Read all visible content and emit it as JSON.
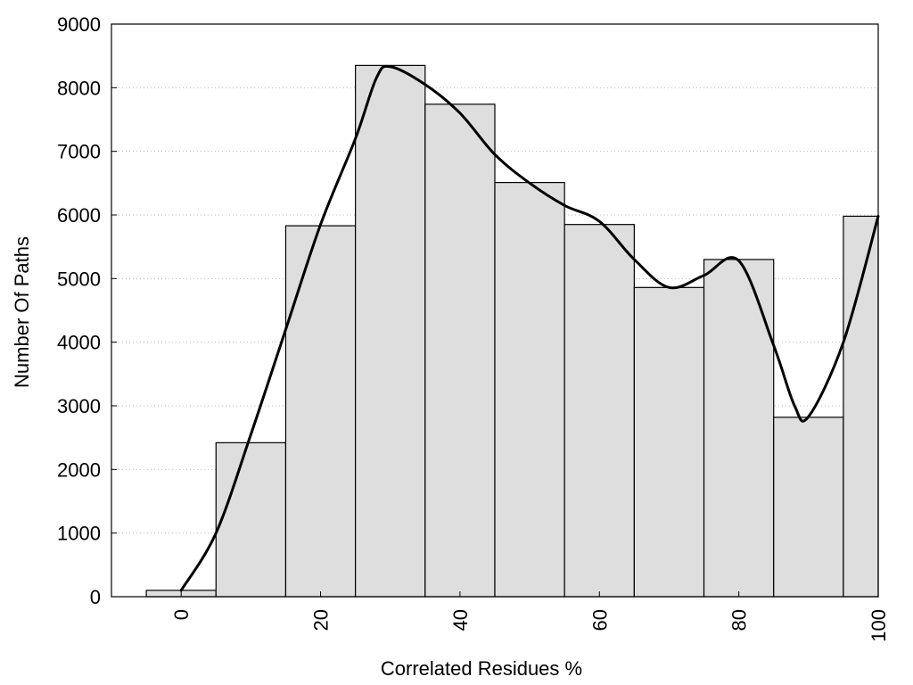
{
  "chart_data": {
    "type": "bar",
    "bar_width": 10,
    "x": [
      0,
      10,
      20,
      30,
      40,
      50,
      60,
      70,
      80,
      90,
      100
    ],
    "values": [
      100,
      2420,
      5830,
      8350,
      7740,
      6510,
      5850,
      4860,
      5300,
      2820,
      5980
    ],
    "curve": [
      [
        0,
        100
      ],
      [
        5,
        1000
      ],
      [
        10,
        2550
      ],
      [
        15,
        4200
      ],
      [
        20,
        5850
      ],
      [
        25,
        7200
      ],
      [
        28,
        8150
      ],
      [
        30,
        8330
      ],
      [
        35,
        8050
      ],
      [
        40,
        7600
      ],
      [
        45,
        6950
      ],
      [
        50,
        6500
      ],
      [
        55,
        6150
      ],
      [
        60,
        5900
      ],
      [
        65,
        5300
      ],
      [
        70,
        4860
      ],
      [
        75,
        5050
      ],
      [
        80,
        5280
      ],
      [
        85,
        3950
      ],
      [
        88,
        3000
      ],
      [
        90,
        2830
      ],
      [
        95,
        4000
      ],
      [
        100,
        5980
      ]
    ],
    "xlabel": "Correlated Residues %",
    "ylabel": "Number Of Paths",
    "xlim": [
      -10,
      100
    ],
    "ylim": [
      0,
      9000
    ],
    "xticks": [
      "0",
      "20",
      "40",
      "60",
      "80",
      "100"
    ],
    "yticks": [
      "0",
      "1000",
      "2000",
      "3000",
      "4000",
      "5000",
      "6000",
      "7000",
      "8000",
      "9000"
    ],
    "grid": true,
    "colors": {
      "bar_fill": "#dedede",
      "bar_stroke": "#000000",
      "curve": "#000000",
      "grid": "#bbbbbb"
    }
  }
}
